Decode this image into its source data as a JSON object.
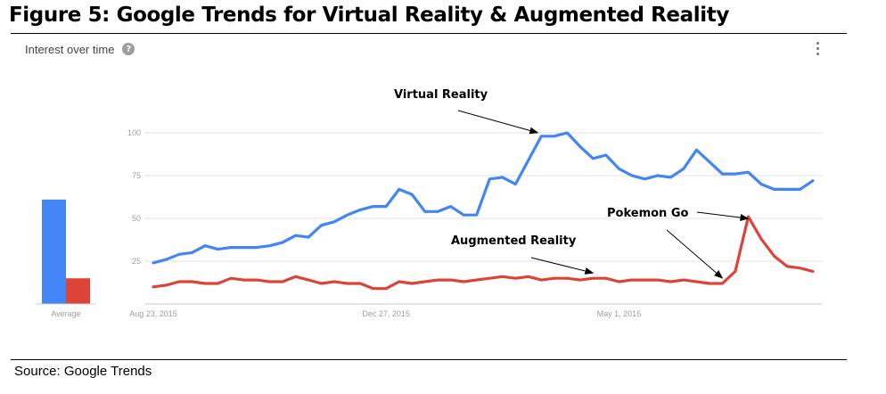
{
  "figure_title": "Figure 5: Google Trends for Virtual Reality & Augmented Reality",
  "source": "Source: Google Trends",
  "card": {
    "title": "Interest over time",
    "help_icon": "help-circle-icon",
    "menu_icon": "more-vertical-icon"
  },
  "colors": {
    "virtual_reality": "#4285f4",
    "augmented_reality": "#db4437",
    "grid": "#e0e0e0",
    "axis": "#cccccc"
  },
  "chart_data": {
    "type": "line",
    "ylim": [
      0,
      100
    ],
    "yticks": [
      25,
      50,
      75,
      100
    ],
    "grid": true,
    "xlabel": "",
    "ylabel": "",
    "x_ticks": [
      {
        "label": "Aug 23, 2015",
        "index": 0
      },
      {
        "label": "Dec 27, 2015",
        "index": 18
      },
      {
        "label": "May 1, 2016",
        "index": 36
      }
    ],
    "series": [
      {
        "name": "Virtual Reality",
        "color": "#4285f4",
        "values": [
          24,
          26,
          29,
          30,
          34,
          32,
          33,
          33,
          33,
          34,
          36,
          40,
          39,
          46,
          48,
          52,
          55,
          57,
          57,
          67,
          64,
          54,
          54,
          57,
          52,
          52,
          73,
          74,
          70,
          84,
          98,
          98,
          100,
          92,
          85,
          87,
          79,
          75,
          73,
          75,
          74,
          79,
          90,
          83,
          76,
          76,
          77,
          70,
          67,
          67,
          67,
          72
        ]
      },
      {
        "name": "Augmented Reality",
        "color": "#db4437",
        "values": [
          10,
          11,
          13,
          13,
          12,
          12,
          15,
          14,
          14,
          13,
          13,
          16,
          14,
          12,
          13,
          12,
          12,
          9,
          9,
          13,
          12,
          13,
          14,
          14,
          13,
          14,
          15,
          16,
          15,
          16,
          14,
          15,
          15,
          14,
          15,
          15,
          13,
          14,
          14,
          14,
          13,
          14,
          13,
          12,
          12,
          19,
          51,
          38,
          28,
          22,
          21,
          19
        ]
      }
    ],
    "average": {
      "label": "Average",
      "values": [
        61,
        15
      ]
    },
    "annotations": [
      {
        "text": "Virtual Reality",
        "series": 0,
        "point_index": 30
      },
      {
        "text": "Augmented Reality",
        "series": 1,
        "point_index": 34
      },
      {
        "text": "Pokemon Go",
        "series": 1,
        "point_index": 46
      },
      {
        "text": "",
        "series": 1,
        "point_index": 44
      }
    ]
  }
}
